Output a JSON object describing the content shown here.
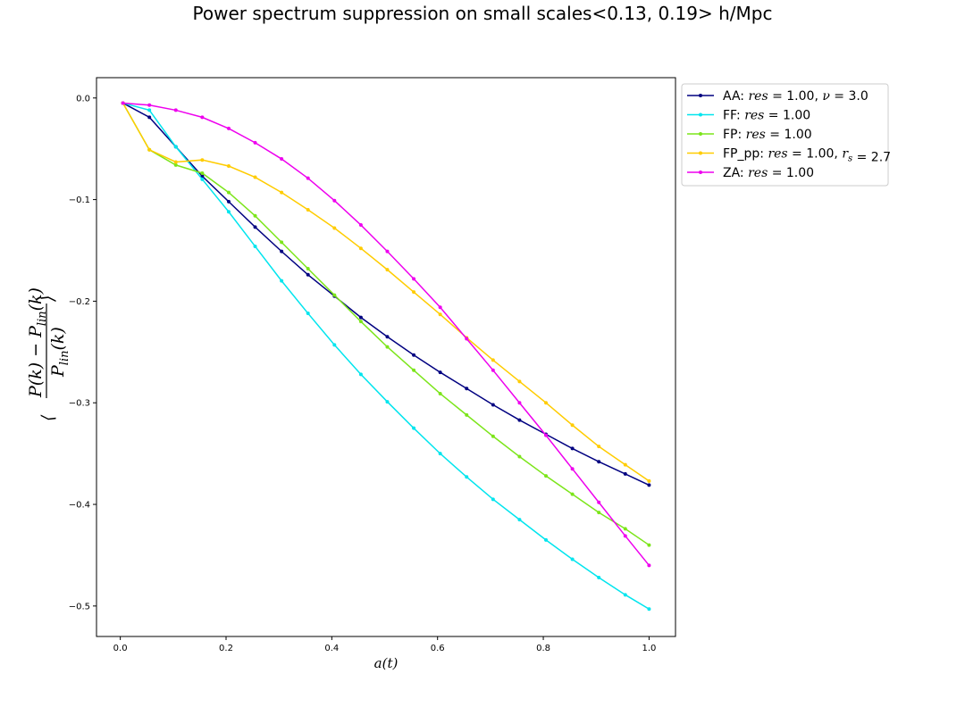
{
  "chart_data": {
    "type": "line",
    "title": "Power spectrum suppression on small scales<0.13, 0.19> h/Mpc",
    "xlabel": "a(t)",
    "ylabel": "⟨ (P(k) − P_lin(k)) / P_lin(k) ⟩",
    "xlim": [
      -0.045,
      1.05
    ],
    "ylim": [
      -0.53,
      0.02
    ],
    "xticks": [
      0.0,
      0.2,
      0.4,
      0.6,
      0.8,
      1.0
    ],
    "xtick_labels": [
      "0.0",
      "0.2",
      "0.4",
      "0.6",
      "0.8",
      "1.0"
    ],
    "yticks": [
      0.0,
      -0.1,
      -0.2,
      -0.3,
      -0.4,
      -0.5
    ],
    "ytick_labels": [
      "0.0",
      "−0.1",
      "−0.2",
      "−0.3",
      "−0.4",
      "−0.5"
    ],
    "grid": false,
    "legend_position": "outside-right-top",
    "x": [
      0.005,
      0.055,
      0.105,
      0.155,
      0.205,
      0.255,
      0.305,
      0.355,
      0.405,
      0.455,
      0.505,
      0.555,
      0.605,
      0.655,
      0.705,
      0.755,
      0.805,
      0.855,
      0.905,
      0.955,
      1.0
    ],
    "series": [
      {
        "name": "AA: res = 1.00, ν = 3.0",
        "color": "#000080",
        "values": [
          -0.005,
          -0.019,
          -0.048,
          -0.077,
          -0.102,
          -0.127,
          -0.151,
          -0.174,
          -0.195,
          -0.216,
          -0.235,
          -0.253,
          -0.27,
          -0.286,
          -0.302,
          -0.317,
          -0.331,
          -0.345,
          -0.358,
          -0.37,
          -0.381
        ]
      },
      {
        "name": "FF: res = 1.00",
        "color": "#00e5ee",
        "values": [
          -0.005,
          -0.012,
          -0.048,
          -0.08,
          -0.112,
          -0.146,
          -0.18,
          -0.212,
          -0.243,
          -0.272,
          -0.299,
          -0.325,
          -0.35,
          -0.373,
          -0.395,
          -0.415,
          -0.435,
          -0.454,
          -0.472,
          -0.489,
          -0.503
        ]
      },
      {
        "name": "FP: res = 1.00",
        "color": "#7ce51a",
        "values": [
          -0.005,
          -0.051,
          -0.066,
          -0.074,
          -0.093,
          -0.116,
          -0.142,
          -0.168,
          -0.194,
          -0.22,
          -0.245,
          -0.268,
          -0.291,
          -0.312,
          -0.333,
          -0.353,
          -0.372,
          -0.39,
          -0.408,
          -0.424,
          -0.44
        ]
      },
      {
        "name": "FP_pp: res = 1.00, r_s = 2.7",
        "color": "#ffcc00",
        "values": [
          -0.005,
          -0.051,
          -0.063,
          -0.061,
          -0.067,
          -0.078,
          -0.093,
          -0.11,
          -0.128,
          -0.148,
          -0.169,
          -0.191,
          -0.213,
          -0.236,
          -0.258,
          -0.279,
          -0.3,
          -0.322,
          -0.343,
          -0.361,
          -0.377
        ]
      },
      {
        "name": "ZA: res = 1.00",
        "color": "#ee00ee",
        "values": [
          -0.005,
          -0.007,
          -0.012,
          -0.019,
          -0.03,
          -0.044,
          -0.06,
          -0.079,
          -0.101,
          -0.125,
          -0.151,
          -0.178,
          -0.206,
          -0.237,
          -0.268,
          -0.3,
          -0.332,
          -0.365,
          -0.398,
          -0.431,
          -0.46
        ]
      }
    ]
  }
}
